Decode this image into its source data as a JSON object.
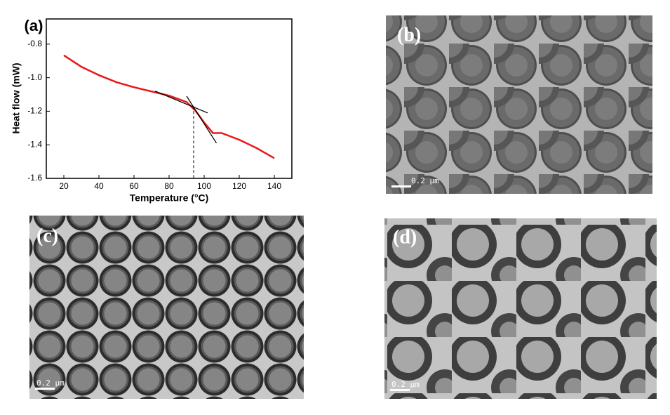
{
  "chart_data": {
    "type": "line",
    "label": "(a)",
    "x_label": "Temperature (°C)",
    "y_label": "Heat flow (mW)",
    "xlim": [
      10,
      150
    ],
    "ylim": [
      -1.6,
      -0.65
    ],
    "xticks": [
      20,
      40,
      60,
      80,
      100,
      120,
      140
    ],
    "yticks": [
      -0.8,
      {
        "value": -1.0,
        "label": "-1.0"
      },
      -1.2,
      -1.4,
      -1.6
    ],
    "series": [
      {
        "color": "#e8191b",
        "x": [
          20,
          30,
          40,
          50,
          60,
          70,
          80,
          90,
          95,
          100,
          105,
          110,
          115,
          120,
          130,
          140
        ],
        "values": [
          -0.867,
          -0.935,
          -0.985,
          -1.027,
          -1.057,
          -1.082,
          -1.107,
          -1.145,
          -1.196,
          -1.267,
          -1.33,
          -1.33,
          -1.35,
          -1.37,
          -1.42,
          -1.48
        ]
      }
    ],
    "guides": [
      {
        "color": "#000000",
        "x": [
          72,
          102
        ],
        "values": [
          -1.08,
          -1.21
        ]
      },
      {
        "color": "#000000",
        "x": [
          90,
          107
        ],
        "values": [
          -1.11,
          -1.39
        ]
      }
    ],
    "vline": {
      "x": 94,
      "values": [
        -1.17,
        -1.6
      ]
    }
  },
  "panels": [
    {
      "label": "(b)",
      "scale_bar": "0.2 μm"
    },
    {
      "label": "(c)",
      "scale_bar": "0.2 μm"
    },
    {
      "label": "(d)",
      "scale_bar": "0.2 μm"
    }
  ]
}
